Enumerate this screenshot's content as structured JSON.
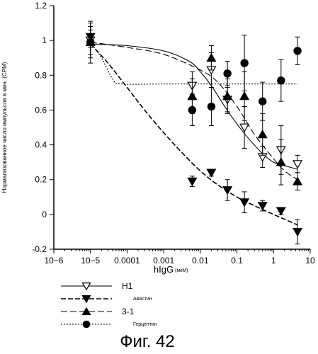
{
  "chart_data": {
    "type": "scatter",
    "xscale": "log",
    "xlim": [
      1e-06,
      10
    ],
    "ylim": [
      -0.2,
      1.2
    ],
    "xticks": [
      1e-06,
      1e-05,
      0.0001,
      0.001,
      0.01,
      0.1,
      1,
      10
    ],
    "xtick_labels": [
      "10−6",
      "10−5",
      "0.0001",
      "0.001",
      "0.01",
      "0.1",
      "1",
      "10"
    ],
    "yticks": [
      -0.2,
      0,
      0.2,
      0.4,
      0.6,
      0.8,
      1,
      1.2
    ],
    "ytick_labels": [
      "-0.2",
      "0",
      "0.2",
      "0.4",
      "0.6",
      "0.8",
      "1",
      "1.2"
    ],
    "xlabel": "hIgG",
    "xlabel_unit": "(мкМ)",
    "ylabel": "Нормализованное число импульсов в мин. (CPM)",
    "caption": "Фиг. 42",
    "grid": false,
    "legend_position": "bottom-left",
    "series": [
      {
        "name": "H1",
        "marker": "triangle-down-open",
        "line": "solid",
        "points": [
          {
            "x": 1e-05,
            "y": 1.0,
            "err": 0.1
          },
          {
            "x": 0.006,
            "y": 0.74,
            "err": 0.08
          },
          {
            "x": 0.02,
            "y": 0.83,
            "err": 0.1
          },
          {
            "x": 0.055,
            "y": 0.66,
            "err": 0.07
          },
          {
            "x": 0.16,
            "y": 0.5,
            "err": 0.12
          },
          {
            "x": 0.5,
            "y": 0.33,
            "err": 0.06
          },
          {
            "x": 1.6,
            "y": 0.37,
            "err": 0.14
          },
          {
            "x": 4.5,
            "y": 0.29,
            "err": 0.05
          }
        ],
        "curve": [
          [
            1e-05,
            0.98
          ],
          [
            0.0001,
            0.97
          ],
          [
            0.001,
            0.94
          ],
          [
            0.005,
            0.88
          ],
          [
            0.01,
            0.82
          ],
          [
            0.02,
            0.74
          ],
          [
            0.05,
            0.61
          ],
          [
            0.1,
            0.52
          ],
          [
            0.2,
            0.44
          ],
          [
            0.5,
            0.35
          ],
          [
            1,
            0.3
          ],
          [
            2,
            0.28
          ],
          [
            4.5,
            0.26
          ]
        ]
      },
      {
        "name": "Авастин",
        "marker": "triangle-down-filled",
        "line": "dashed",
        "points": [
          {
            "x": 1e-05,
            "y": 1.02,
            "err": 0.06
          },
          {
            "x": 0.006,
            "y": 0.19,
            "err": 0.03
          },
          {
            "x": 0.02,
            "y": 0.24,
            "err": 0.02
          },
          {
            "x": 0.055,
            "y": 0.14,
            "err": 0.06
          },
          {
            "x": 0.16,
            "y": 0.07,
            "err": 0.06
          },
          {
            "x": 0.5,
            "y": 0.05,
            "err": 0.03
          },
          {
            "x": 1.6,
            "y": 0.02,
            "err": 0.02
          },
          {
            "x": 4.5,
            "y": -0.1,
            "err": 0.07
          }
        ],
        "curve": [
          [
            1e-05,
            0.98
          ],
          [
            3e-05,
            0.87
          ],
          [
            0.0001,
            0.73
          ],
          [
            0.0003,
            0.6
          ],
          [
            0.001,
            0.47
          ],
          [
            0.003,
            0.36
          ],
          [
            0.01,
            0.25
          ],
          [
            0.03,
            0.17
          ],
          [
            0.1,
            0.1
          ],
          [
            0.3,
            0.05
          ],
          [
            1,
            0.0
          ],
          [
            4.5,
            -0.06
          ]
        ]
      },
      {
        "name": "3-1",
        "marker": "triangle-up-filled",
        "line": "long-dashed",
        "points": [
          {
            "x": 1e-05,
            "y": 0.99,
            "err": 0.12
          },
          {
            "x": 0.006,
            "y": 0.68,
            "err": 0.1
          },
          {
            "x": 0.02,
            "y": 0.9,
            "err": 0.07
          },
          {
            "x": 0.055,
            "y": 0.68,
            "err": 0.1
          },
          {
            "x": 0.16,
            "y": 0.68,
            "err": 0.14
          },
          {
            "x": 0.5,
            "y": 0.46,
            "err": 0.12
          },
          {
            "x": 1.6,
            "y": 0.3,
            "err": 0.13
          },
          {
            "x": 4.5,
            "y": 0.19,
            "err": 0.05
          }
        ],
        "curve": [
          [
            1e-05,
            0.99
          ],
          [
            0.0001,
            0.96
          ],
          [
            0.001,
            0.92
          ],
          [
            0.01,
            0.83
          ],
          [
            0.03,
            0.76
          ],
          [
            0.1,
            0.62
          ],
          [
            0.3,
            0.46
          ],
          [
            1,
            0.32
          ],
          [
            2,
            0.25
          ],
          [
            4.5,
            0.2
          ]
        ]
      },
      {
        "name": "Герцептин",
        "marker": "circle-filled",
        "line": "dotted",
        "points": [
          {
            "x": 1e-05,
            "y": 0.99,
            "err": 0.07
          },
          {
            "x": 0.006,
            "y": 0.6,
            "err": 0.09
          },
          {
            "x": 0.02,
            "y": 0.62,
            "err": 0.11
          },
          {
            "x": 0.055,
            "y": 0.81,
            "err": 0.07
          },
          {
            "x": 0.16,
            "y": 0.87,
            "err": 0.16
          },
          {
            "x": 0.5,
            "y": 0.65,
            "err": 0.11
          },
          {
            "x": 1.6,
            "y": 0.77,
            "err": 0.12
          },
          {
            "x": 4.5,
            "y": 0.94,
            "err": 0.08
          }
        ],
        "curve": [
          [
            1e-05,
            0.99
          ],
          [
            2e-05,
            0.9
          ],
          [
            4e-05,
            0.78
          ],
          [
            7e-05,
            0.75
          ],
          [
            0.001,
            0.75
          ],
          [
            0.01,
            0.75
          ],
          [
            0.1,
            0.75
          ],
          [
            1,
            0.75
          ],
          [
            4.5,
            0.75
          ]
        ]
      }
    ]
  }
}
